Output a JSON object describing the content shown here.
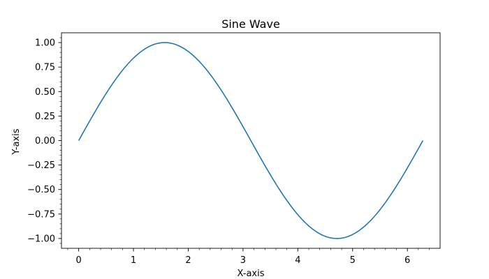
{
  "chart_data": {
    "type": "line",
    "title": "Sine Wave",
    "xlabel": "X-axis",
    "ylabel": "Y-axis",
    "xlim": [
      -0.314,
      6.597
    ],
    "ylim": [
      -1.1,
      1.1
    ],
    "xticks": [
      0,
      1,
      2,
      3,
      4,
      5,
      6
    ],
    "xtick_labels": [
      "0",
      "1",
      "2",
      "3",
      "4",
      "5",
      "6"
    ],
    "yticks": [
      -1.0,
      -0.75,
      -0.5,
      -0.25,
      0.0,
      0.25,
      0.5,
      0.75,
      1.0
    ],
    "ytick_labels": [
      "−1.00",
      "−0.75",
      "−0.50",
      "−0.25",
      "0.00",
      "0.25",
      "0.50",
      "0.75",
      "1.00"
    ],
    "minor_ticks": true,
    "grid": false,
    "series": [
      {
        "function": "sin",
        "x_start": 0,
        "x_end": 6.283,
        "color": "#1f77b4",
        "x": [
          0,
          0.314,
          0.628,
          0.942,
          1.257,
          1.571,
          1.885,
          2.199,
          2.513,
          2.827,
          3.142,
          3.456,
          3.77,
          4.084,
          4.398,
          4.712,
          5.027,
          5.341,
          5.655,
          5.969,
          6.283
        ],
        "y": [
          0,
          0.309,
          0.588,
          0.809,
          0.951,
          1.0,
          0.951,
          0.809,
          0.588,
          0.309,
          0,
          -0.309,
          -0.588,
          -0.809,
          -0.951,
          -1.0,
          -0.951,
          -0.809,
          -0.588,
          -0.309,
          0
        ]
      }
    ]
  }
}
